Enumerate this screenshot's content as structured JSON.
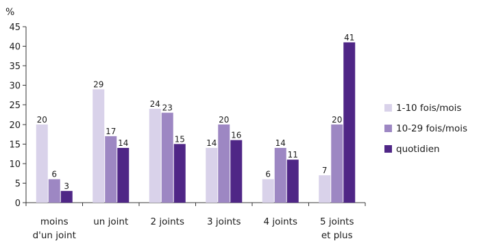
{
  "chart_data": {
    "type": "bar",
    "unit": "%",
    "ylim": [
      0,
      45
    ],
    "yticks": [
      0,
      5,
      10,
      15,
      20,
      25,
      30,
      35,
      40,
      45
    ],
    "grid": false,
    "legend_position": "right",
    "categories": [
      [
        "moins",
        "d'un joint"
      ],
      [
        "un joint"
      ],
      [
        "2 joints"
      ],
      [
        "3 joints"
      ],
      [
        "4 joints"
      ],
      [
        "5 joints",
        "et plus"
      ]
    ],
    "series": [
      {
        "name": "1-10 fois/mois",
        "color": "#d9d2ea",
        "values": [
          20,
          29,
          24,
          14,
          6,
          7
        ]
      },
      {
        "name": "10-29 fois/mois",
        "color": "#9d87c3",
        "values": [
          6,
          17,
          23,
          20,
          14,
          20
        ]
      },
      {
        "name": "quotidien",
        "color": "#4f2686",
        "values": [
          3,
          14,
          15,
          16,
          11,
          41
        ]
      }
    ]
  }
}
